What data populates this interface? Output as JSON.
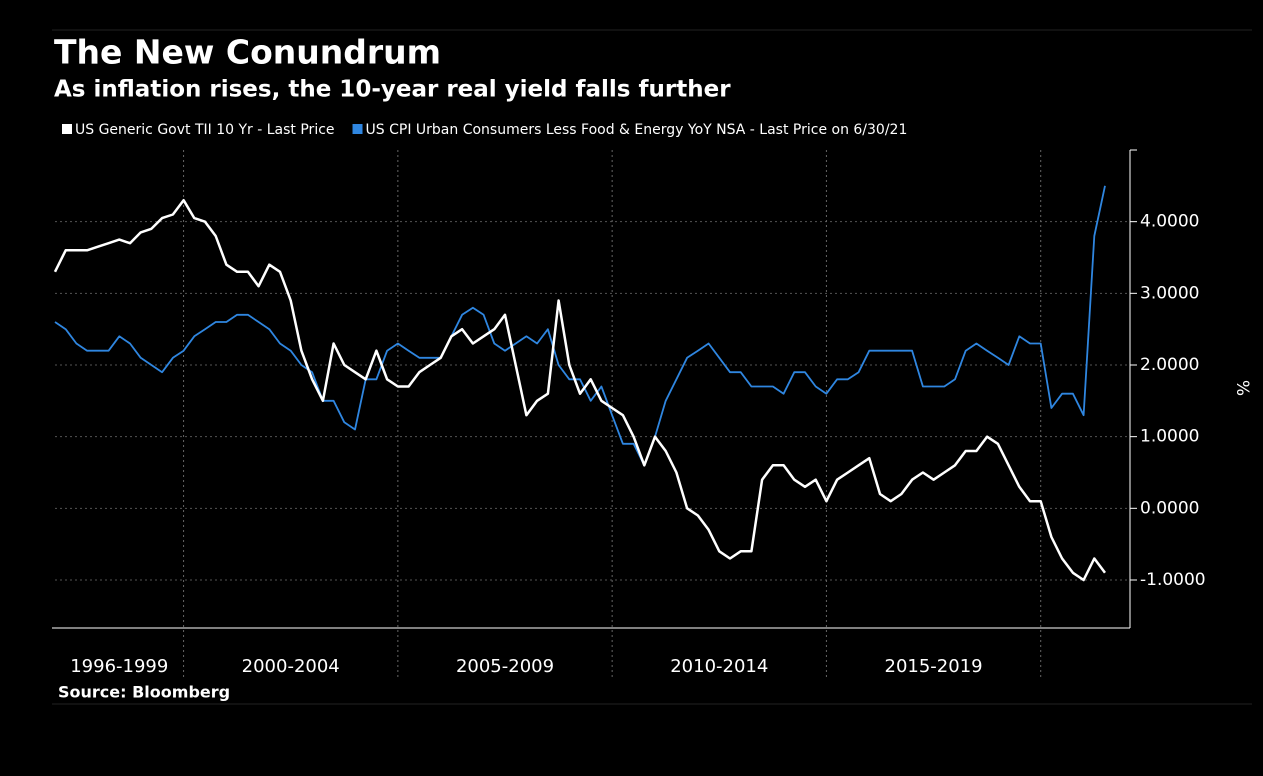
{
  "chart_data": {
    "type": "line",
    "title": "The New Conundrum",
    "subtitle": "As inflation rises, the 10-year real yield falls further",
    "source": "Source: Bloomberg",
    "y_label": "%",
    "x": [
      "1996-1999",
      "1996-1999",
      "1996-1999",
      "1996-1999",
      "1996-1999",
      "1996-1999",
      "1996-1999",
      "1996-1999",
      "1996-1999",
      "1996-1999",
      "1996-1999",
      "1996-1999",
      "2000-2004",
      "2000-2004",
      "2000-2004",
      "2000-2004",
      "2000-2004",
      "2000-2004",
      "2000-2004",
      "2000-2004",
      "2000-2004",
      "2000-2004",
      "2000-2004",
      "2000-2004",
      "2000-2004",
      "2000-2004",
      "2000-2004",
      "2000-2004",
      "2000-2004",
      "2000-2004",
      "2000-2004",
      "2000-2004",
      "2005-2009",
      "2005-2009",
      "2005-2009",
      "2005-2009",
      "2005-2009",
      "2005-2009",
      "2005-2009",
      "2005-2009",
      "2005-2009",
      "2005-2009",
      "2005-2009",
      "2005-2009",
      "2005-2009",
      "2005-2009",
      "2005-2009",
      "2005-2009",
      "2005-2009",
      "2005-2009",
      "2005-2009",
      "2005-2009",
      "2010-2014",
      "2010-2014",
      "2010-2014",
      "2010-2014",
      "2010-2014",
      "2010-2014",
      "2010-2014",
      "2010-2014",
      "2010-2014",
      "2010-2014",
      "2010-2014",
      "2010-2014",
      "2010-2014",
      "2010-2014",
      "2010-2014",
      "2010-2014",
      "2010-2014",
      "2010-2014",
      "2010-2014",
      "2010-2014",
      "2015-2019",
      "2015-2019",
      "2015-2019",
      "2015-2019",
      "2015-2019",
      "2015-2019",
      "2015-2019",
      "2015-2019",
      "2015-2019",
      "2015-2019",
      "2015-2019",
      "2015-2019",
      "2015-2019",
      "2015-2019",
      "2015-2019",
      "2015-2019",
      "2015-2019",
      "2015-2019",
      "2015-2019",
      "2015-2019",
      null,
      null,
      null,
      null,
      null,
      null,
      null
    ],
    "series": [
      {
        "name": "US Generic Govt TII 10 Yr - Last Price",
        "color": "#ffffff",
        "values": [
          3.3,
          3.6,
          3.6,
          3.6,
          3.65,
          3.7,
          3.75,
          3.7,
          3.85,
          3.9,
          4.05,
          4.1,
          4.3,
          4.05,
          4.0,
          3.8,
          3.4,
          3.3,
          3.3,
          3.1,
          3.4,
          3.3,
          2.9,
          2.2,
          1.8,
          1.5,
          2.3,
          2.0,
          1.9,
          1.8,
          2.2,
          1.8,
          1.7,
          1.7,
          1.9,
          2.0,
          2.1,
          2.4,
          2.5,
          2.3,
          2.4,
          2.5,
          2.7,
          2.0,
          1.3,
          1.5,
          1.6,
          2.9,
          2.0,
          1.6,
          1.8,
          1.5,
          1.4,
          1.3,
          1.0,
          0.6,
          1.0,
          0.8,
          0.5,
          0.0,
          -0.1,
          -0.3,
          -0.6,
          -0.7,
          -0.6,
          -0.6,
          0.4,
          0.6,
          0.6,
          0.4,
          0.3,
          0.4,
          0.1,
          0.4,
          0.5,
          0.6,
          0.7,
          0.2,
          0.1,
          0.2,
          0.4,
          0.5,
          0.4,
          0.5,
          0.6,
          0.8,
          0.8,
          1.0,
          0.9,
          0.6,
          0.3,
          0.1,
          0.1,
          -0.4,
          -0.7,
          -0.9,
          -1.0,
          -0.7,
          -0.9
        ]
      },
      {
        "name": "US CPI Urban Consumers Less Food & Energy YoY NSA - Last Price on 6/30/21",
        "color": "#2f86e0",
        "values": [
          2.6,
          2.5,
          2.3,
          2.2,
          2.2,
          2.2,
          2.4,
          2.3,
          2.1,
          2.0,
          1.9,
          2.1,
          2.2,
          2.4,
          2.5,
          2.6,
          2.6,
          2.7,
          2.7,
          2.6,
          2.5,
          2.3,
          2.2,
          2.0,
          1.9,
          1.5,
          1.5,
          1.2,
          1.1,
          1.8,
          1.8,
          2.2,
          2.3,
          2.2,
          2.1,
          2.1,
          2.1,
          2.4,
          2.7,
          2.8,
          2.7,
          2.3,
          2.2,
          2.3,
          2.4,
          2.3,
          2.5,
          2.0,
          1.8,
          1.8,
          1.5,
          1.7,
          1.3,
          0.9,
          0.9,
          0.6,
          1.0,
          1.5,
          1.8,
          2.1,
          2.2,
          2.3,
          2.1,
          1.9,
          1.9,
          1.7,
          1.7,
          1.7,
          1.6,
          1.9,
          1.9,
          1.7,
          1.6,
          1.8,
          1.8,
          1.9,
          2.2,
          2.2,
          2.2,
          2.2,
          2.2,
          1.7,
          1.7,
          1.7,
          1.8,
          2.2,
          2.3,
          2.2,
          2.1,
          2.0,
          2.4,
          2.3,
          2.3,
          1.4,
          1.6,
          1.6,
          1.3,
          3.8,
          4.5
        ]
      }
    ],
    "ylim": [
      -1.67,
      5.0
    ],
    "yticks": [
      {
        "value": -1,
        "label": "-1.0000"
      },
      {
        "value": 0,
        "label": "0.0000"
      },
      {
        "value": 1,
        "label": "1.0000"
      },
      {
        "value": 2,
        "label": "2.0000"
      },
      {
        "value": 3,
        "label": "3.0000"
      },
      {
        "value": 4,
        "label": "4.0000"
      }
    ],
    "grid": true
  }
}
